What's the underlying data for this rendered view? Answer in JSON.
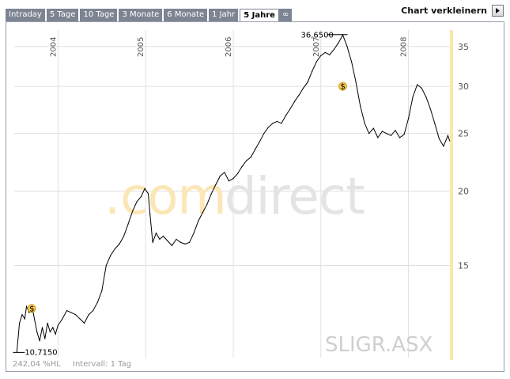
{
  "tabs": [
    {
      "label": "Intraday",
      "active": false
    },
    {
      "label": "5 Tage",
      "active": false
    },
    {
      "label": "10 Tage",
      "active": false
    },
    {
      "label": "3 Monate",
      "active": false
    },
    {
      "label": "6 Monate",
      "active": false
    },
    {
      "label": "1 Jahr",
      "active": false
    },
    {
      "label": "5 Jahre",
      "active": true
    },
    {
      "label": "∞",
      "active": false
    }
  ],
  "header": {
    "shrink_label": "Chart verkleinern"
  },
  "watermark": {
    "dot": ".",
    "com": "com",
    "direct": "direct"
  },
  "ticker": "SLIGR.ASX",
  "footer": {
    "left": "242,04 %HL",
    "right": "Intervall: 1 Tag"
  },
  "colors": {
    "tab_bg": "#7d8492",
    "line": "#000000",
    "accent": "#f3c74d",
    "grid": "#e0e0e0"
  },
  "chart_data": {
    "type": "line",
    "title": "",
    "xlabel": "",
    "ylabel": "",
    "x_ticks": [
      "2004",
      "2005",
      "2006",
      "2007",
      "2008"
    ],
    "x_tick_dates": [
      2004.0,
      2005.0,
      2006.0,
      2007.0,
      2008.0
    ],
    "xlim": [
      2003.5,
      2008.5
    ],
    "y_ticks": [
      15,
      20,
      25,
      30,
      35
    ],
    "ylim": [
      10.5,
      37.3
    ],
    "y_scale": "log",
    "grid": true,
    "low": {
      "label": "10,7150",
      "value": 10.715
    },
    "high": {
      "label": "36,6500",
      "value": 36.65
    },
    "dividend_markers": [
      {
        "label": "$",
        "x": 2003.7,
        "y": 12.7
      },
      {
        "label": "$",
        "x": 2007.25,
        "y": 30.0
      }
    ],
    "series": [
      {
        "x": [
          2003.53,
          2003.56,
          2003.59,
          2003.62,
          2003.64,
          2003.67,
          2003.7,
          2003.73,
          2003.76,
          2003.79,
          2003.82,
          2003.85,
          2003.88,
          2003.91,
          2003.94,
          2003.97,
          2004.0,
          2004.05,
          2004.1,
          2004.15,
          2004.2,
          2004.25,
          2004.3,
          2004.35,
          2004.4,
          2004.45,
          2004.5,
          2004.55,
          2004.6,
          2004.65,
          2004.7,
          2004.75,
          2004.8,
          2004.85,
          2004.9,
          2004.95,
          2004.99,
          2005.03,
          2005.05,
          2005.08,
          2005.12,
          2005.16,
          2005.2,
          2005.25,
          2005.3,
          2005.35,
          2005.4,
          2005.45,
          2005.5,
          2005.55,
          2005.6,
          2005.65,
          2005.7,
          2005.75,
          2005.8,
          2005.85,
          2005.9,
          2005.95,
          2006.0,
          2006.05,
          2006.1,
          2006.15,
          2006.2,
          2006.25,
          2006.3,
          2006.35,
          2006.4,
          2006.45,
          2006.5,
          2006.55,
          2006.6,
          2006.65,
          2006.7,
          2006.75,
          2006.8,
          2006.85,
          2006.9,
          2006.95,
          2007.0,
          2007.05,
          2007.1,
          2007.15,
          2007.2,
          2007.25,
          2007.3,
          2007.35,
          2007.4,
          2007.45,
          2007.5,
          2007.55,
          2007.6,
          2007.65,
          2007.7,
          2007.75,
          2007.8,
          2007.85,
          2007.9,
          2007.95,
          2008.0,
          2008.05,
          2008.1,
          2008.15,
          2008.2,
          2008.25,
          2008.3,
          2008.35,
          2008.4,
          2008.45,
          2008.47
        ],
        "values": [
          10.72,
          12.0,
          12.4,
          12.2,
          12.8,
          12.5,
          12.9,
          12.2,
          11.6,
          11.2,
          11.8,
          11.3,
          12.0,
          11.6,
          11.8,
          11.5,
          11.9,
          12.2,
          12.6,
          12.5,
          12.4,
          12.2,
          12.0,
          12.4,
          12.6,
          13.0,
          13.6,
          15.0,
          15.6,
          16.0,
          16.3,
          16.8,
          17.6,
          18.5,
          19.2,
          19.6,
          20.2,
          19.8,
          18.3,
          16.4,
          17.0,
          16.6,
          16.8,
          16.5,
          16.2,
          16.6,
          16.4,
          16.3,
          16.4,
          17.0,
          17.8,
          18.4,
          19.0,
          19.8,
          20.5,
          21.2,
          21.5,
          20.8,
          21.0,
          21.4,
          22.0,
          22.5,
          22.8,
          23.5,
          24.2,
          25.0,
          25.6,
          26.0,
          26.2,
          26.0,
          26.8,
          27.5,
          28.3,
          29.0,
          29.8,
          30.5,
          31.8,
          33.0,
          33.8,
          34.2,
          33.9,
          34.6,
          35.5,
          36.6,
          35.0,
          33.0,
          30.5,
          27.8,
          26.0,
          25.0,
          25.5,
          24.6,
          25.2,
          25.0,
          24.8,
          25.3,
          24.6,
          24.9,
          26.5,
          28.8,
          30.2,
          29.8,
          28.8,
          27.5,
          26.0,
          24.5,
          23.8,
          24.8,
          24.3
        ]
      }
    ]
  }
}
